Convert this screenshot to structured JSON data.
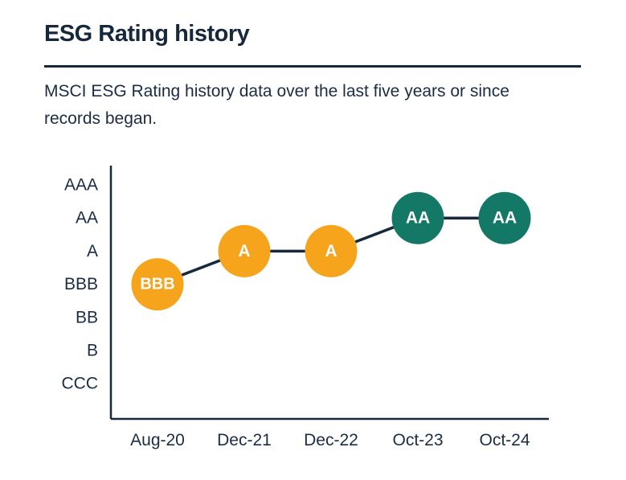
{
  "page": {
    "title": "ESG Rating history",
    "subtitle": "MSCI ESG Rating history data over the last five years or since records began."
  },
  "colors": {
    "navy": "#16283C",
    "amber": "#F5A41C",
    "teal": "#147867",
    "point_label": "#FFFFFF"
  },
  "chart_data": {
    "type": "line",
    "title": "ESG Rating history",
    "xlabel": "",
    "ylabel": "",
    "x": [
      "Aug-20",
      "Dec-21",
      "Dec-22",
      "Oct-23",
      "Oct-24"
    ],
    "y_categories_top_to_bottom": [
      "AAA",
      "AA",
      "A",
      "BBB",
      "BB",
      "B",
      "CCC"
    ],
    "series": [
      {
        "name": "MSCI ESG Rating",
        "values": [
          "BBB",
          "A",
          "A",
          "AA",
          "AA"
        ],
        "point_colors": [
          "#F5A41C",
          "#F5A41C",
          "#F5A41C",
          "#147867",
          "#147867"
        ]
      }
    ],
    "grid": false,
    "legend_position": "none",
    "line_color": "#16283C",
    "axis_color": "#16283C",
    "tick_label_color": "#1B2D44"
  }
}
